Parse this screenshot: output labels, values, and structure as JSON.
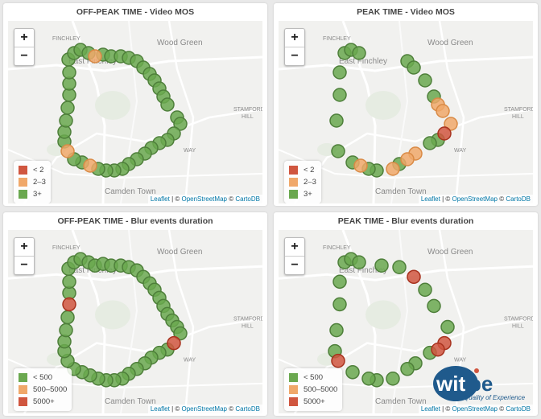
{
  "colors": {
    "red": "#d0563f",
    "orange": "#f0a86a",
    "green": "#6aa84f",
    "map_bg": "#f1f1ef"
  },
  "common": {
    "zoom_in": "+",
    "zoom_out": "−",
    "attribution": {
      "leaflet": "Leaflet",
      "sep1": " | © ",
      "osm": "OpenStreetMap",
      "sep2": " © ",
      "carto": "CartoDB"
    },
    "places": {
      "woodgreen": "Wood Green",
      "eastfinchley": "East Finchley",
      "finchley": "FINCHLEY",
      "camden": "Camden Town",
      "stamford": "STAMFORD",
      "hill": "HILL",
      "way": "WAY"
    }
  },
  "panels": [
    {
      "title": "OFF-PEAK TIME - Video MOS",
      "legend": [
        {
          "label": "< 2",
          "color": "#d0563f"
        },
        {
          "label": "2–3",
          "color": "#f0a86a"
        },
        {
          "label": "3+",
          "color": "#6aa84f"
        }
      ]
    },
    {
      "title": "PEAK TIME - Video MOS",
      "legend": [
        {
          "label": "< 2",
          "color": "#d0563f"
        },
        {
          "label": "2–3",
          "color": "#f0a86a"
        },
        {
          "label": "3+",
          "color": "#6aa84f"
        }
      ]
    },
    {
      "title": "OFF-PEAK TIME - Blur events duration",
      "legend": [
        {
          "label": "< 500",
          "color": "#6aa84f"
        },
        {
          "label": "500–5000",
          "color": "#f0a86a"
        },
        {
          "label": "5000+",
          "color": "#d0563f"
        }
      ]
    },
    {
      "title": "PEAK TIME - Blur events duration",
      "legend": [
        {
          "label": "< 500",
          "color": "#6aa84f"
        },
        {
          "label": "500–5000",
          "color": "#f0a86a"
        },
        {
          "label": "5000+",
          "color": "#d0563f"
        }
      ]
    }
  ],
  "logo": {
    "word": "witbe",
    "tagline": "Quality of Experience"
  }
}
